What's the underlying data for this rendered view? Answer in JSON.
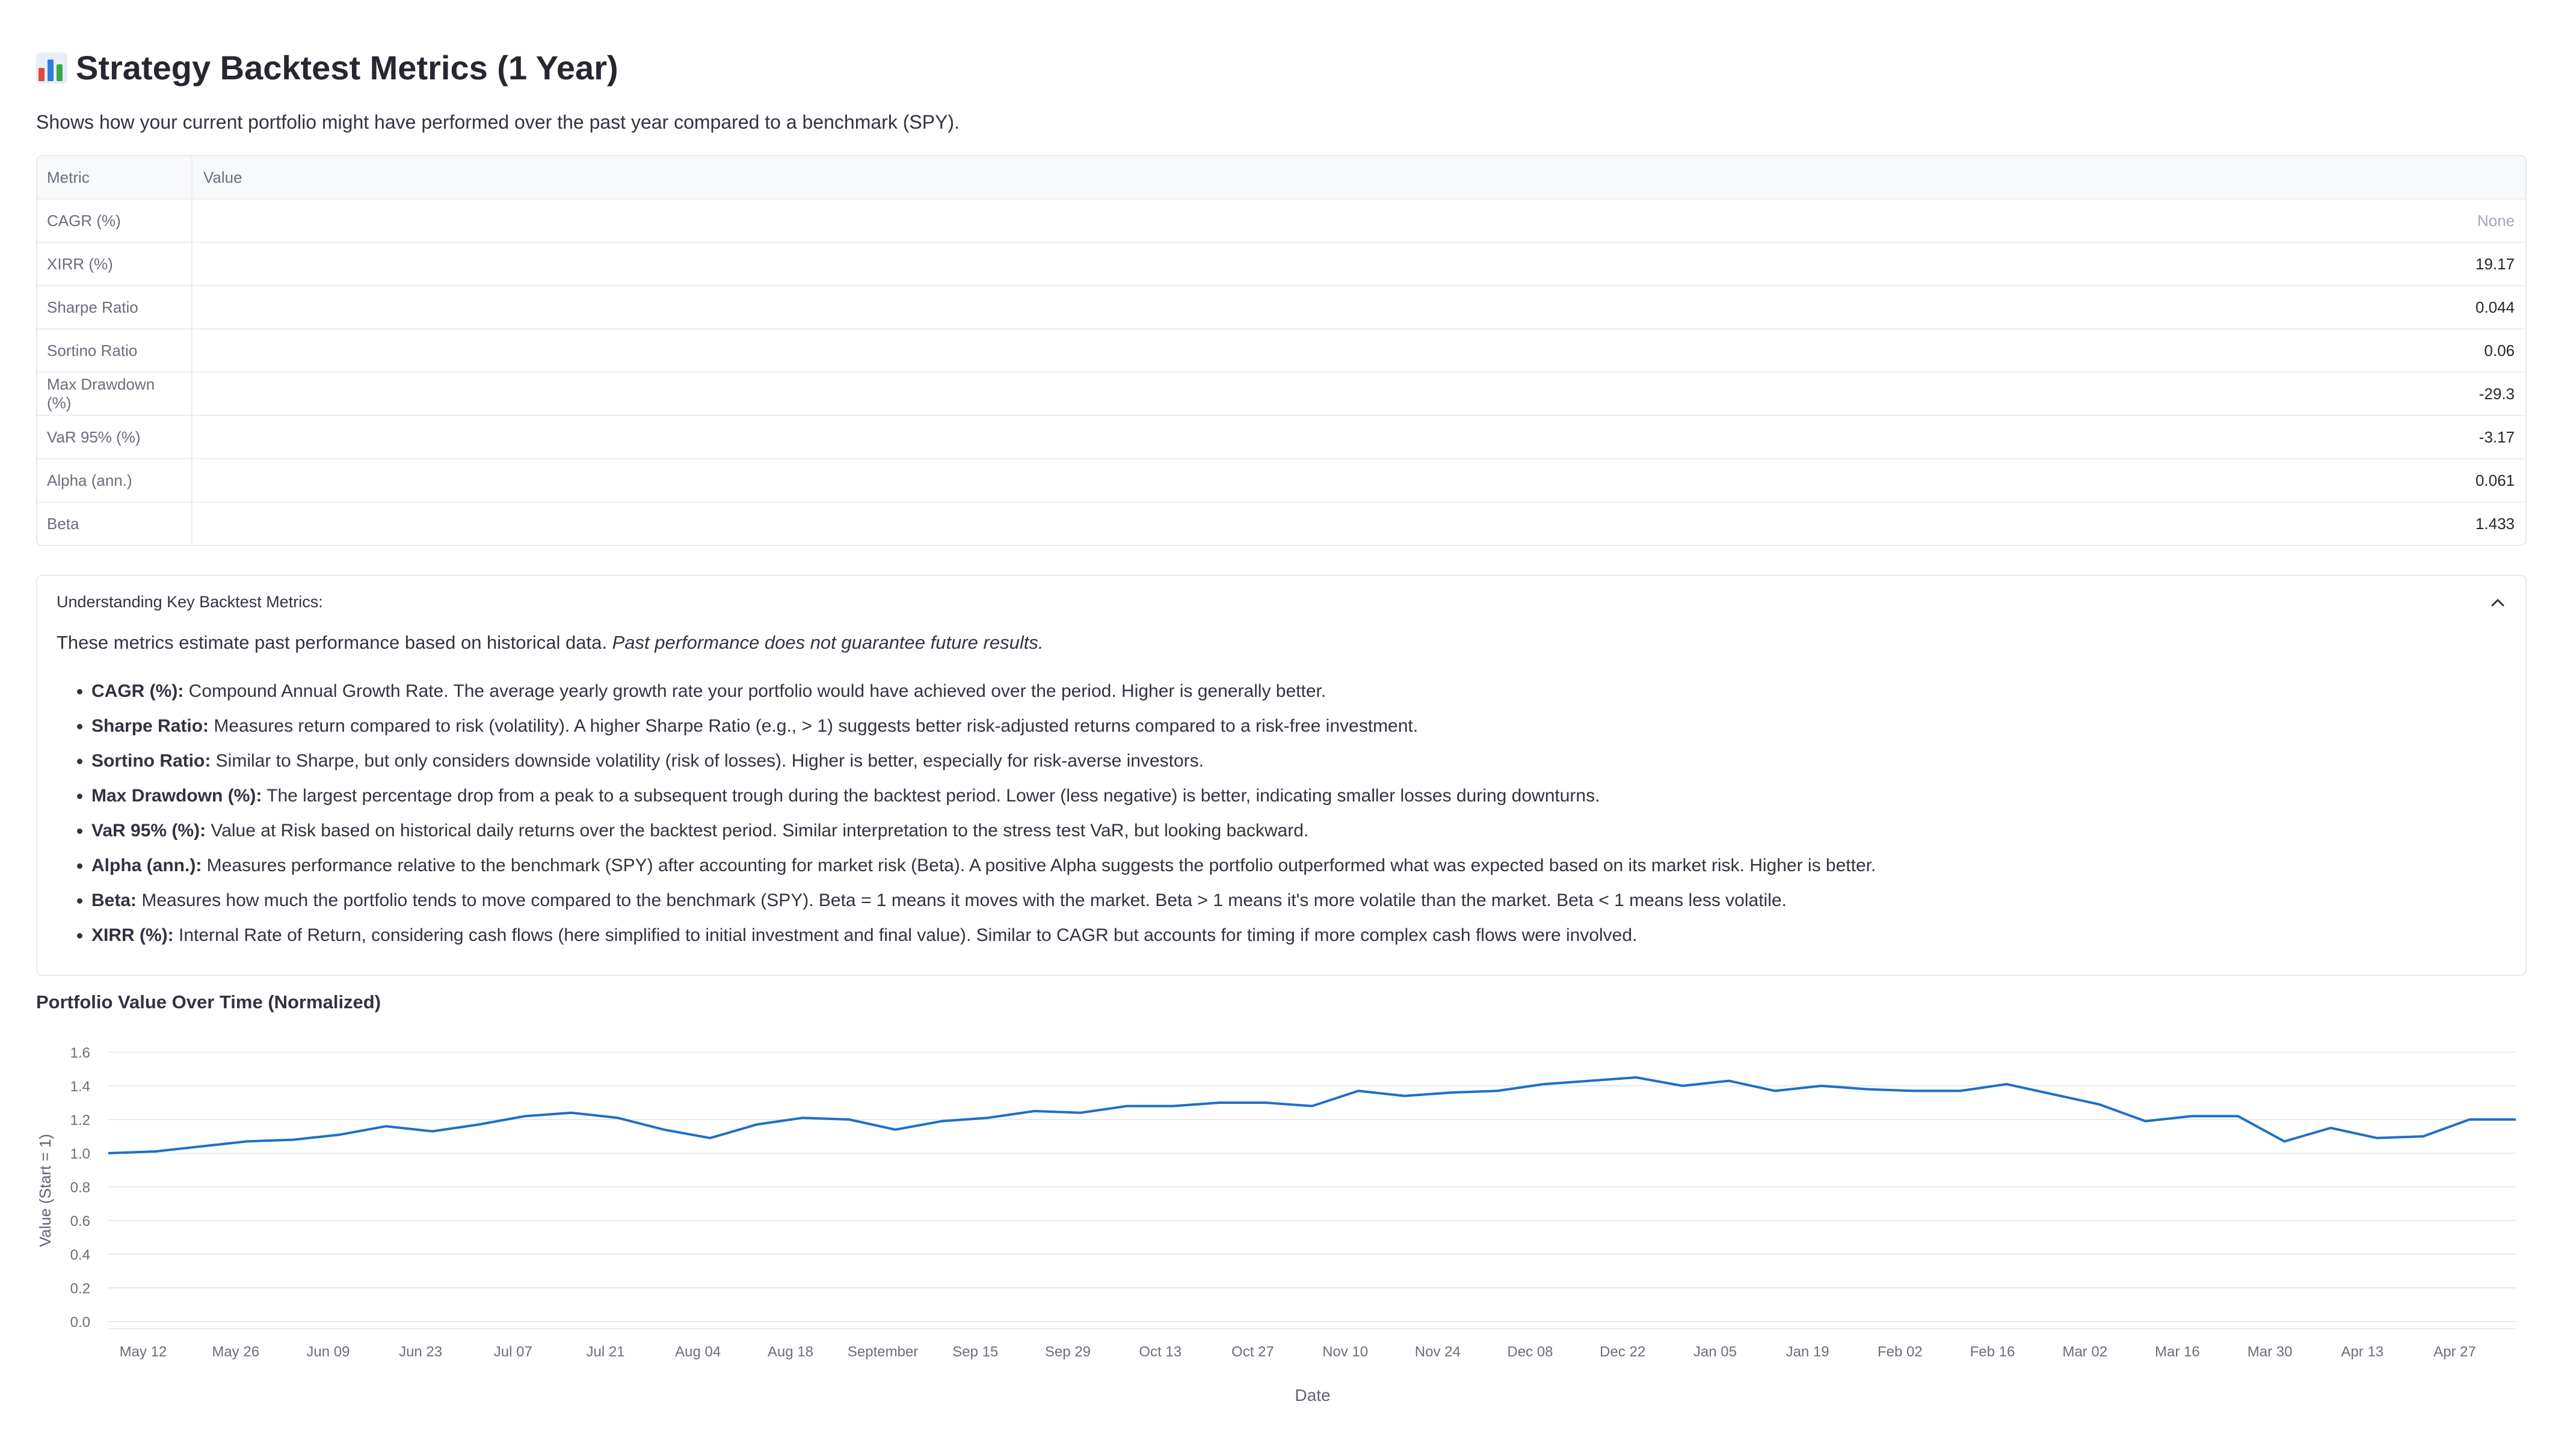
{
  "header": {
    "icon": "bar-chart-icon",
    "title": "Strategy Backtest Metrics (1 Year)",
    "subtitle": "Shows how your current portfolio might have performed over the past year compared to a benchmark (SPY)."
  },
  "metrics_table": {
    "columns": [
      "Metric",
      "Value"
    ],
    "rows": [
      {
        "metric": "CAGR (%)",
        "value": "None"
      },
      {
        "metric": "XIRR (%)",
        "value": "19.17"
      },
      {
        "metric": "Sharpe Ratio",
        "value": "0.044"
      },
      {
        "metric": "Sortino Ratio",
        "value": "0.06"
      },
      {
        "metric": "Max Drawdown (%)",
        "value": "-29.3"
      },
      {
        "metric": "VaR 95% (%)",
        "value": "-3.17"
      },
      {
        "metric": "Alpha (ann.)",
        "value": "0.061"
      },
      {
        "metric": "Beta",
        "value": "1.433"
      }
    ]
  },
  "expander": {
    "label": "Understanding Key Backtest Metrics:",
    "icon": "chevron-up-icon",
    "intro": "These metrics estimate past performance based on historical data.",
    "intro_italic": "Past performance does not guarantee future results.",
    "items": [
      {
        "term": "CAGR (%):",
        "text": "Compound Annual Growth Rate. The average yearly growth rate your portfolio would have achieved over the period. Higher is generally better."
      },
      {
        "term": "Sharpe Ratio:",
        "text": "Measures return compared to risk (volatility). A higher Sharpe Ratio (e.g., > 1) suggests better risk-adjusted returns compared to a risk-free investment."
      },
      {
        "term": "Sortino Ratio:",
        "text": "Similar to Sharpe, but only considers downside volatility (risk of losses). Higher is better, especially for risk-averse investors."
      },
      {
        "term": "Max Drawdown (%):",
        "text": "The largest percentage drop from a peak to a subsequent trough during the backtest period. Lower (less negative) is better, indicating smaller losses during downturns."
      },
      {
        "term": "VaR 95% (%):",
        "text": "Value at Risk based on historical daily returns over the backtest period. Similar interpretation to the stress test VaR, but looking backward."
      },
      {
        "term": "Alpha (ann.):",
        "text": "Measures performance relative to the benchmark (SPY) after accounting for market risk (Beta). A positive Alpha suggests the portfolio outperformed what was expected based on its market risk. Higher is better."
      },
      {
        "term": "Beta:",
        "text": "Measures how much the portfolio tends to move compared to the benchmark (SPY). Beta = 1 means it moves with the market. Beta > 1 means it's more volatile than the market. Beta < 1 means less volatile."
      },
      {
        "term": "XIRR (%):",
        "text": "Internal Rate of Return, considering cash flows (here simplified to initial investment and final value). Similar to CAGR but accounts for timing if more complex cash flows were involved."
      }
    ]
  },
  "chart_data": {
    "type": "line",
    "title": "Portfolio Value Over Time (Normalized)",
    "xlabel": "Date",
    "ylabel": "Value (Start = 1)",
    "ylim": [
      0,
      1.6
    ],
    "yticks": [
      "0.0",
      "0.2",
      "0.4",
      "0.6",
      "0.8",
      "1.0",
      "1.2",
      "1.4",
      "1.6"
    ],
    "xticks": [
      "May 12",
      "May 26",
      "Jun 09",
      "Jun 23",
      "Jul 07",
      "Jul 21",
      "Aug 04",
      "Aug 18",
      "September",
      "Sep 15",
      "Sep 29",
      "Oct 13",
      "Oct 27",
      "Nov 10",
      "Nov 24",
      "Dec 08",
      "Dec 22",
      "Jan 05",
      "Jan 19",
      "Feb 02",
      "Feb 16",
      "Mar 02",
      "Mar 16",
      "Mar 30",
      "Apr 13",
      "Apr 27"
    ],
    "grid": true,
    "line_color": "#1f6fc5",
    "series": [
      {
        "x": [
          "May 06",
          "May 12",
          "May 19",
          "May 26",
          "Jun 02",
          "Jun 09",
          "Jun 16",
          "Jun 23",
          "Jun 30",
          "Jul 07",
          "Jul 14",
          "Jul 21",
          "Jul 28",
          "Aug 04",
          "Aug 11",
          "Aug 18",
          "Aug 25",
          "Sep 01",
          "Sep 08",
          "Sep 15",
          "Sep 22",
          "Sep 29",
          "Oct 06",
          "Oct 13",
          "Oct 20",
          "Oct 27",
          "Nov 03",
          "Nov 10",
          "Nov 17",
          "Nov 24",
          "Dec 01",
          "Dec 08",
          "Dec 15",
          "Dec 22",
          "Dec 29",
          "Jan 05",
          "Jan 12",
          "Jan 19",
          "Jan 26",
          "Feb 02",
          "Feb 09",
          "Feb 16",
          "Feb 23",
          "Mar 02",
          "Mar 09",
          "Mar 16",
          "Mar 23",
          "Mar 30",
          "Apr 06",
          "Apr 13",
          "Apr 20",
          "Apr 27",
          "May 04"
        ],
        "values": [
          1.0,
          1.01,
          1.04,
          1.07,
          1.08,
          1.11,
          1.16,
          1.13,
          1.17,
          1.22,
          1.24,
          1.21,
          1.14,
          1.09,
          1.17,
          1.21,
          1.2,
          1.14,
          1.19,
          1.21,
          1.25,
          1.24,
          1.28,
          1.28,
          1.3,
          1.3,
          1.28,
          1.37,
          1.34,
          1.36,
          1.37,
          1.41,
          1.43,
          1.45,
          1.4,
          1.43,
          1.37,
          1.4,
          1.38,
          1.37,
          1.37,
          1.41,
          1.35,
          1.29,
          1.19,
          1.22,
          1.22,
          1.07,
          1.15,
          1.09,
          1.1,
          1.2,
          1.2
        ]
      }
    ]
  }
}
